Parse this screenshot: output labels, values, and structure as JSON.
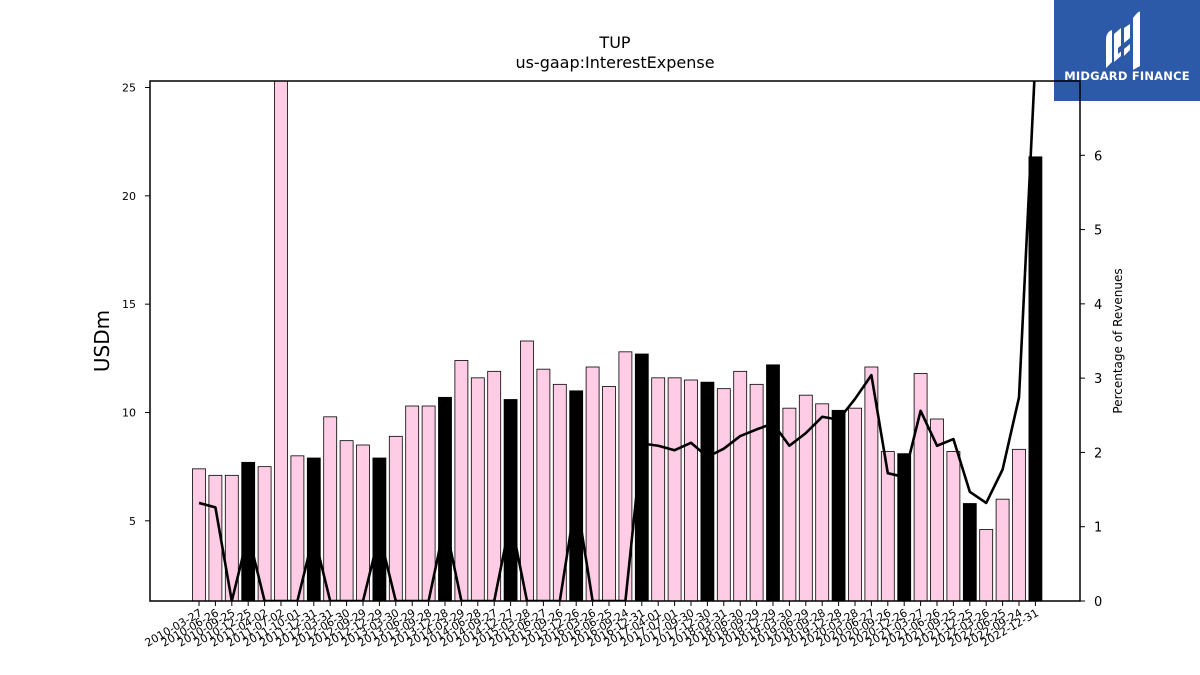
{
  "logo": {
    "text": "MIDGARD FINANCE"
  },
  "chart_data": {
    "type": "bar",
    "title": "TUP",
    "subtitle": "us-gaap:InterestExpense",
    "ylabel": "USDm",
    "y2label": "Percentage of Revenues",
    "ylim": [
      1.3,
      25.3
    ],
    "yticks": [
      5,
      10,
      15,
      20,
      25
    ],
    "y2lim": [
      0,
      7
    ],
    "y2ticks": [
      0,
      1,
      2,
      3,
      4,
      5,
      6
    ],
    "categories": [
      "2010-03-27",
      "2010-06-26",
      "2010-09-25",
      "2010-12-25",
      "2011-04-02",
      "2011-07-02",
      "2011-10-01",
      "2011-12-31",
      "2012-03-31",
      "2012-06-30",
      "2012-09-29",
      "2012-12-29",
      "2013-03-30",
      "2013-06-29",
      "2013-09-28",
      "2013-12-28",
      "2014-03-29",
      "2014-06-28",
      "2014-09-27",
      "2014-12-27",
      "2015-03-28",
      "2015-06-27",
      "2015-09-26",
      "2015-12-26",
      "2016-03-26",
      "2016-06-25",
      "2016-09-24",
      "2016-12-31",
      "2017-04-01",
      "2017-07-01",
      "2017-09-30",
      "2017-12-30",
      "2018-03-31",
      "2018-06-30",
      "2018-09-29",
      "2018-12-29",
      "2019-03-30",
      "2019-06-29",
      "2019-09-28",
      "2019-12-28",
      "2020-03-28",
      "2020-06-27",
      "2020-09-26",
      "2020-12-26",
      "2021-03-27",
      "2021-06-26",
      "2021-09-25",
      "2021-12-25",
      "2022-03-26",
      "2022-06-25",
      "2022-09-24",
      "2022-12-31"
    ],
    "values": [
      7.4,
      7.1,
      7.1,
      7.7,
      7.5,
      25.5,
      8.0,
      7.9,
      9.8,
      8.7,
      8.5,
      7.9,
      8.9,
      10.3,
      10.3,
      10.7,
      12.4,
      11.6,
      11.9,
      10.6,
      13.3,
      12.0,
      11.3,
      11.0,
      12.1,
      11.2,
      12.8,
      12.7,
      11.6,
      11.6,
      11.5,
      11.4,
      11.1,
      11.9,
      11.3,
      12.2,
      10.2,
      10.8,
      10.4,
      10.1,
      10.2,
      12.1,
      8.2,
      8.1,
      11.8,
      9.7,
      8.2,
      5.8,
      4.6,
      6.0,
      8.3,
      21.8
    ],
    "q4_flags": [
      0,
      0,
      0,
      1,
      0,
      0,
      0,
      1,
      0,
      0,
      0,
      1,
      0,
      0,
      0,
      1,
      0,
      0,
      0,
      1,
      0,
      0,
      0,
      1,
      0,
      0,
      0,
      1,
      0,
      0,
      0,
      1,
      0,
      0,
      0,
      1,
      0,
      0,
      0,
      1,
      0,
      0,
      0,
      1,
      0,
      0,
      0,
      1,
      0,
      0,
      0,
      1
    ],
    "pct_revenue": [
      1.32,
      1.26,
      0.0,
      0.9,
      0.0,
      0.0,
      0.0,
      0.9,
      0.0,
      0.0,
      0.0,
      0.9,
      0.0,
      0.0,
      0.0,
      1.05,
      0.0,
      0.0,
      0.0,
      1.1,
      0.0,
      0.0,
      0.0,
      1.4,
      0.0,
      0.0,
      0.0,
      2.12,
      2.09,
      2.03,
      2.13,
      1.94,
      2.05,
      2.22,
      2.31,
      2.39,
      2.09,
      2.26,
      2.48,
      2.44,
      2.72,
      3.04,
      1.72,
      1.67,
      2.56,
      2.09,
      2.18,
      1.47,
      1.32,
      1.77,
      2.74,
      7.3
    ],
    "colors": {
      "bar": "#ffcce6",
      "bar_q4": "#000000",
      "line": "#000000"
    }
  }
}
